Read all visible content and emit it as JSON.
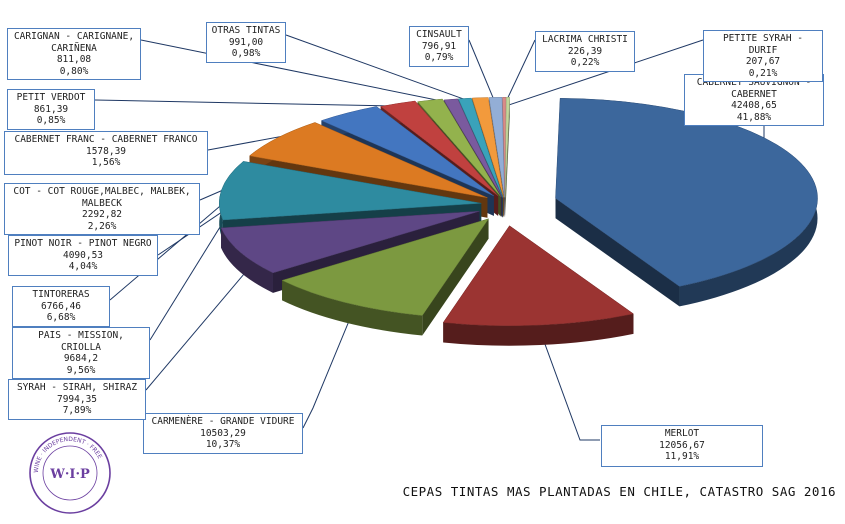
{
  "chart_data": {
    "type": "pie",
    "title": "CEPAS TINTAS MAS PLANTADAS EN CHILE, CATASTRO SAG 2016",
    "slices": [
      {
        "label": "CABERNET SAUVIGNON - CABERNET",
        "value": "42408,65",
        "percent": "41,88%",
        "pct": 41.88,
        "color": "#3c679c"
      },
      {
        "label": "MERLOT",
        "value": "12056,67",
        "percent": "11,91%",
        "pct": 11.91,
        "color": "#9b3432"
      },
      {
        "label": "CARMENÈRE - GRANDE VIDURE",
        "value": "10503,29",
        "percent": "10,37%",
        "pct": 10.37,
        "color": "#7c9940"
      },
      {
        "label": "SYRAH - SIRAH, SHIRAZ",
        "value": "7994,35",
        "percent": "7,89%",
        "pct": 7.89,
        "color": "#5e4785"
      },
      {
        "label": "PAIS - MISSION, CRIOLLA",
        "value": "9684,2",
        "percent": "9,56%",
        "pct": 9.56,
        "color": "#2e8ba0"
      },
      {
        "label": "TINTORERAS",
        "value": "6766,46",
        "percent": "6,68%",
        "pct": 6.68,
        "color": "#dc7a22"
      },
      {
        "label": "PINOT NOIR - PINOT NEGRO",
        "value": "4090,53",
        "percent": "4,04%",
        "pct": 4.04,
        "color": "#4376c0"
      },
      {
        "label": "COT - COT ROUGE,MALBEC, MALBEK, MALBECK",
        "value": "2292,82",
        "percent": "2,26%",
        "pct": 2.26,
        "color": "#c0413f"
      },
      {
        "label": "CABERNET FRANC - CABERNET FRANCO",
        "value": "1578,39",
        "percent": "1,56%",
        "pct": 1.56,
        "color": "#93b24d"
      },
      {
        "label": "PETIT VERDOT",
        "value": "861,39",
        "percent": "0,85%",
        "pct": 0.85,
        "color": "#7a5a9e"
      },
      {
        "label": "CARIGNAN - CARIGNANE, CARIÑENA",
        "value": "811,08",
        "percent": "0,80%",
        "pct": 0.8,
        "color": "#3aa2ba"
      },
      {
        "label": "OTRAS TINTAS",
        "value": "991,00",
        "percent": "0,98%",
        "pct": 0.98,
        "color": "#f29a3c"
      },
      {
        "label": "CINSAULT",
        "value": "796,91",
        "percent": "0,79%",
        "pct": 0.79,
        "color": "#93aed6"
      },
      {
        "label": "LACRIMA CHRISTI",
        "value": "226,39",
        "percent": "0,22%",
        "pct": 0.22,
        "color": "#d98a88"
      },
      {
        "label": "PETITE SYRAH - DURIF",
        "value": "207,67",
        "percent": "0,21%",
        "pct": 0.21,
        "color": "#c2d69b"
      }
    ]
  },
  "logo": {
    "initials": "W·I·P",
    "ring_text": "WINE · INDEPENDENT · FREE"
  },
  "colors": {
    "label_border": "#4f7fbf",
    "leader": "#1f3864"
  }
}
